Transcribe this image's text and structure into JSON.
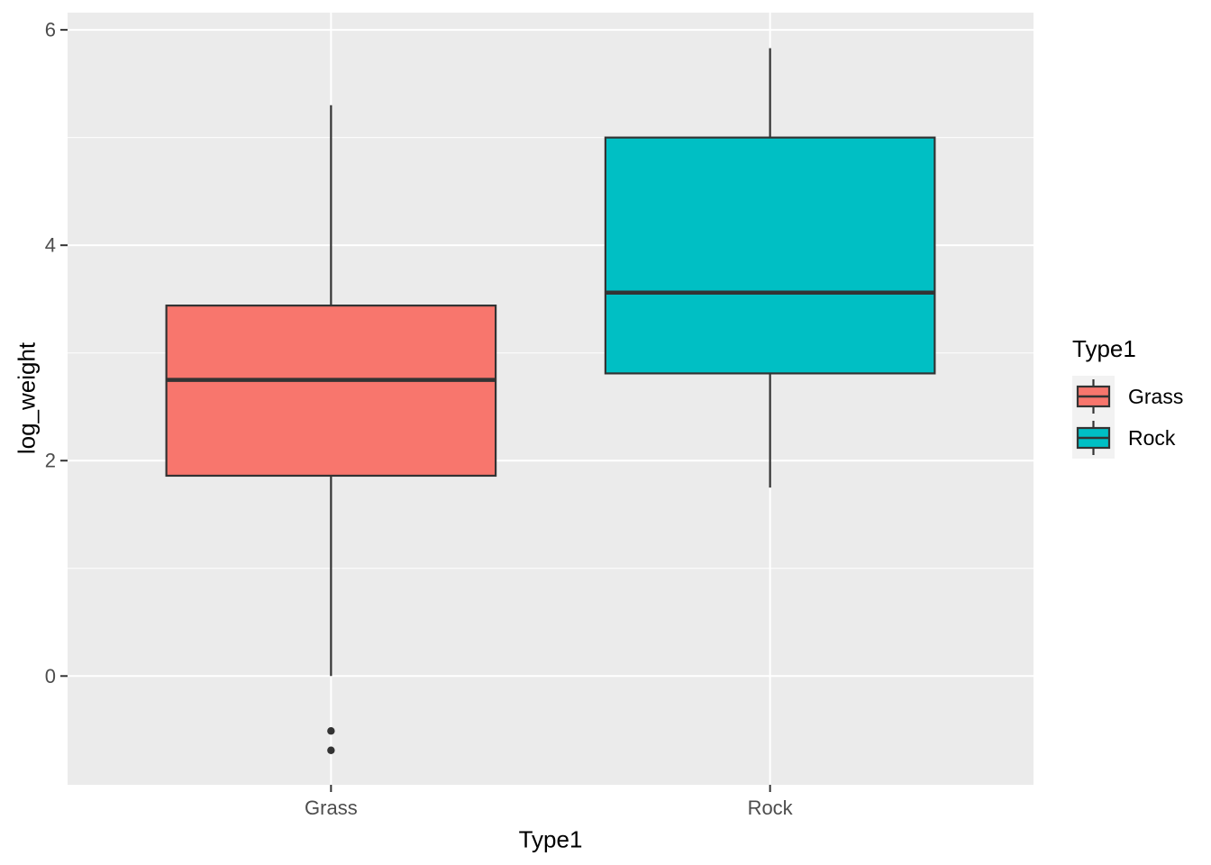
{
  "chart_data": {
    "type": "boxplot",
    "title": "",
    "xlabel": "Type1",
    "ylabel": "log_weight",
    "categories": [
      "Grass",
      "Rock"
    ],
    "series": [
      {
        "name": "Grass",
        "color": "#F8766D",
        "whisker_low": 0.0,
        "q1": 1.86,
        "median": 2.75,
        "q3": 3.44,
        "whisker_high": 5.3,
        "outliers": [
          -0.51,
          -0.69
        ]
      },
      {
        "name": "Rock",
        "color": "#00BFC4",
        "whisker_low": 1.75,
        "q1": 2.81,
        "median": 3.56,
        "q3": 5.0,
        "whisker_high": 5.83,
        "outliers": []
      }
    ],
    "yticks": [
      0,
      2,
      4,
      6
    ],
    "yminor": [
      1,
      3,
      5
    ],
    "ylim": [
      -1.01,
      6.16
    ],
    "grid": true,
    "legend": {
      "title": "Type1",
      "position": "right",
      "entries": [
        {
          "label": "Grass",
          "color": "#F8766D"
        },
        {
          "label": "Rock",
          "color": "#00BFC4"
        }
      ]
    },
    "colors": {
      "page_bg": "#FFFFFF",
      "panel_bg": "#EBEBEB",
      "grid": "#FFFFFF",
      "stroke": "#333333",
      "tick_mark": "#333333",
      "tick_label": "#4D4D4D",
      "axis_title": "#000000",
      "legend_key_bg": "#F2F2F2"
    }
  }
}
